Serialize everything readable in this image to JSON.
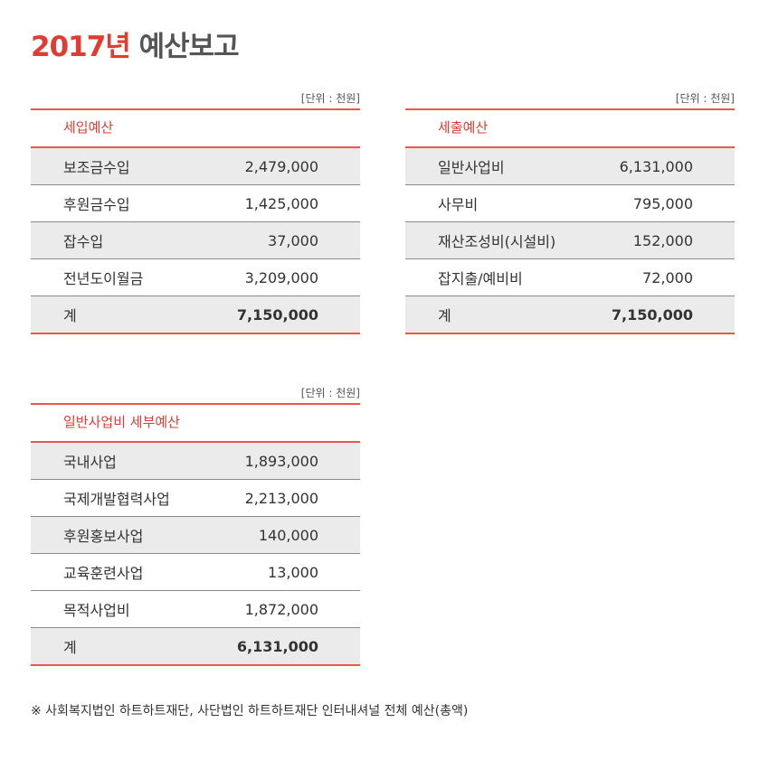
{
  "title": {
    "year": "2017년",
    "rest": "예산보고"
  },
  "unit_label": "[단위 : 천원]",
  "income": {
    "header": "세입예산",
    "rows": [
      {
        "label": "보조금수입",
        "value": "2,479,000"
      },
      {
        "label": "후원금수입",
        "value": "1,425,000"
      },
      {
        "label": "잡수입",
        "value": "37,000"
      },
      {
        "label": "전년도이월금",
        "value": "3,209,000"
      }
    ],
    "total": {
      "label": "계",
      "value": "7,150,000"
    }
  },
  "expense": {
    "header": "세출예산",
    "rows": [
      {
        "label": "일반사업비",
        "value": "6,131,000"
      },
      {
        "label": "사무비",
        "value": "795,000"
      },
      {
        "label": "재산조성비(시설비)",
        "value": "152,000"
      },
      {
        "label": "잡지출/예비비",
        "value": "72,000"
      }
    ],
    "total": {
      "label": "계",
      "value": "7,150,000"
    }
  },
  "detail": {
    "header": "일반사업비 세부예산",
    "rows": [
      {
        "label": "국내사업",
        "value": "1,893,000"
      },
      {
        "label": "국제개발협력사업",
        "value": "2,213,000"
      },
      {
        "label": "후원홍보사업",
        "value": "140,000"
      },
      {
        "label": "교육훈련사업",
        "value": "13,000"
      },
      {
        "label": "목적사업비",
        "value": "1,872,000"
      }
    ],
    "total": {
      "label": "계",
      "value": "6,131,000"
    }
  },
  "footnote": "※ 사회복지법인 하트하트재단, 사단법인 하트하트재단 인터내셔널 전체 예산(총액)"
}
